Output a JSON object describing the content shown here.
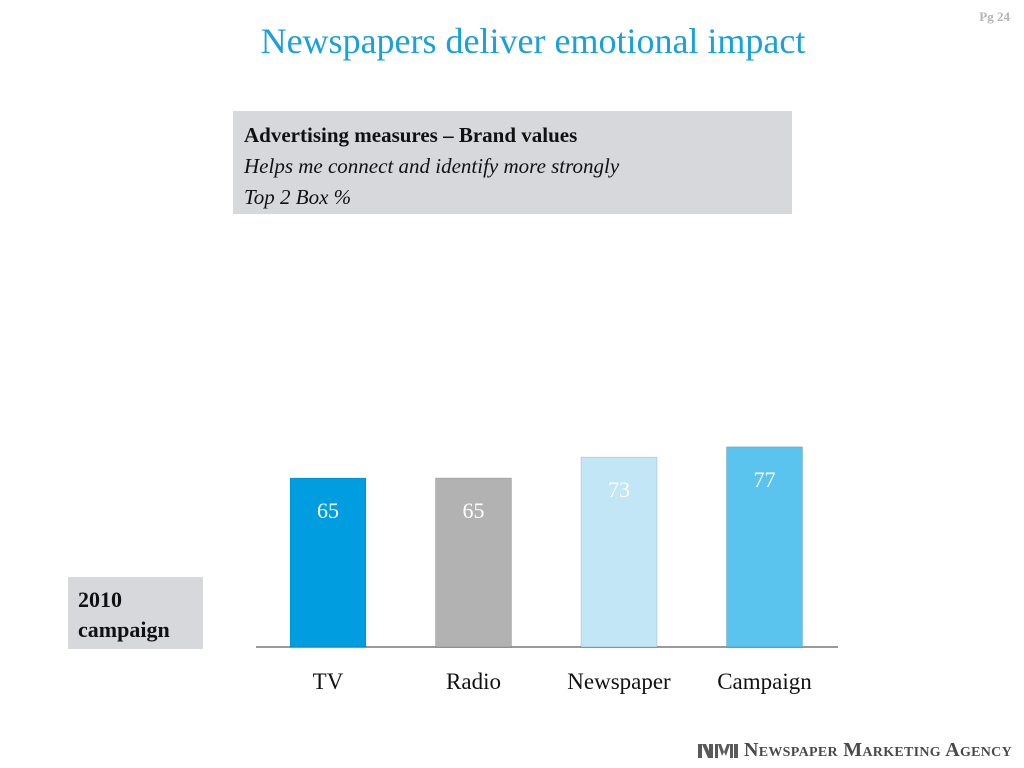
{
  "page_number": "Pg 24",
  "title": "Newspapers deliver emotional impact",
  "info_box": {
    "heading": "Advertising measures – Brand values",
    "line1": "Helps me connect and identify more strongly",
    "line2": "Top 2 Box %"
  },
  "side_label": "2010 campaign",
  "footer": {
    "logo_mark": "NMA",
    "agency_name": "Newspaper Marketing Agency"
  },
  "chart_data": {
    "type": "bar",
    "categories": [
      "TV",
      "Radio",
      "Newspaper",
      "Campaign"
    ],
    "values": [
      65,
      65,
      73,
      77
    ],
    "data_labels": [
      "65",
      "65",
      "73",
      "77"
    ],
    "colors": [
      "#009ee0",
      "#b2b2b2",
      "#c3e6f6",
      "#5bc4ee"
    ],
    "grid": false,
    "legend": "none"
  }
}
